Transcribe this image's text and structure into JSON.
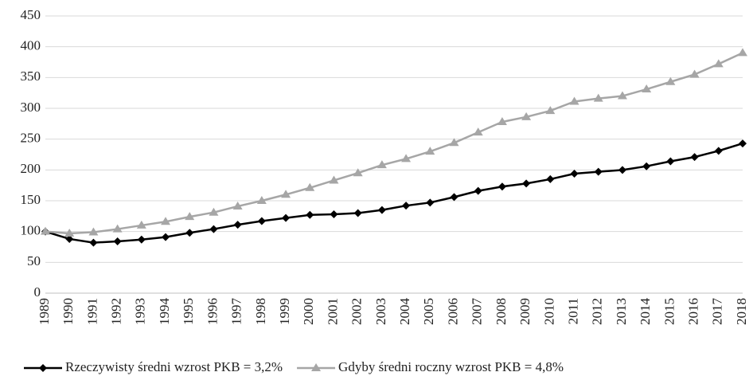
{
  "chart_data": {
    "type": "line",
    "categories": [
      "1989",
      "1990",
      "1991",
      "1992",
      "1993",
      "1994",
      "1995",
      "1996",
      "1997",
      "1998",
      "1999",
      "2000",
      "2001",
      "2002",
      "2003",
      "2004",
      "2005",
      "2006",
      "2007",
      "2008",
      "2009",
      "2010",
      "2011",
      "2012",
      "2013",
      "2014",
      "2015",
      "2016",
      "2017",
      "2018"
    ],
    "series": [
      {
        "name": "Rzeczywisty średni wzrost PKB = 3,2%",
        "color": "#000000",
        "marker": "diamond",
        "values": [
          100,
          88,
          82,
          84,
          87,
          91,
          98,
          104,
          111,
          117,
          122,
          127,
          128,
          130,
          135,
          142,
          147,
          156,
          166,
          173,
          178,
          185,
          194,
          197,
          200,
          206,
          214,
          221,
          231,
          243
        ]
      },
      {
        "name": "Gdyby średni roczny wzrost PKB = 4,8%",
        "color": "#a6a6a6",
        "marker": "triangle",
        "values": [
          100,
          97,
          99,
          104,
          110,
          116,
          124,
          131,
          141,
          150,
          160,
          171,
          183,
          195,
          208,
          218,
          230,
          244,
          261,
          278,
          286,
          296,
          311,
          316,
          320,
          331,
          343,
          355,
          372,
          390
        ]
      }
    ],
    "ylim": [
      0,
      450
    ],
    "yticks": [
      0,
      50,
      100,
      150,
      200,
      250,
      300,
      350,
      400,
      450
    ],
    "grid": true,
    "legend": "bottom"
  }
}
